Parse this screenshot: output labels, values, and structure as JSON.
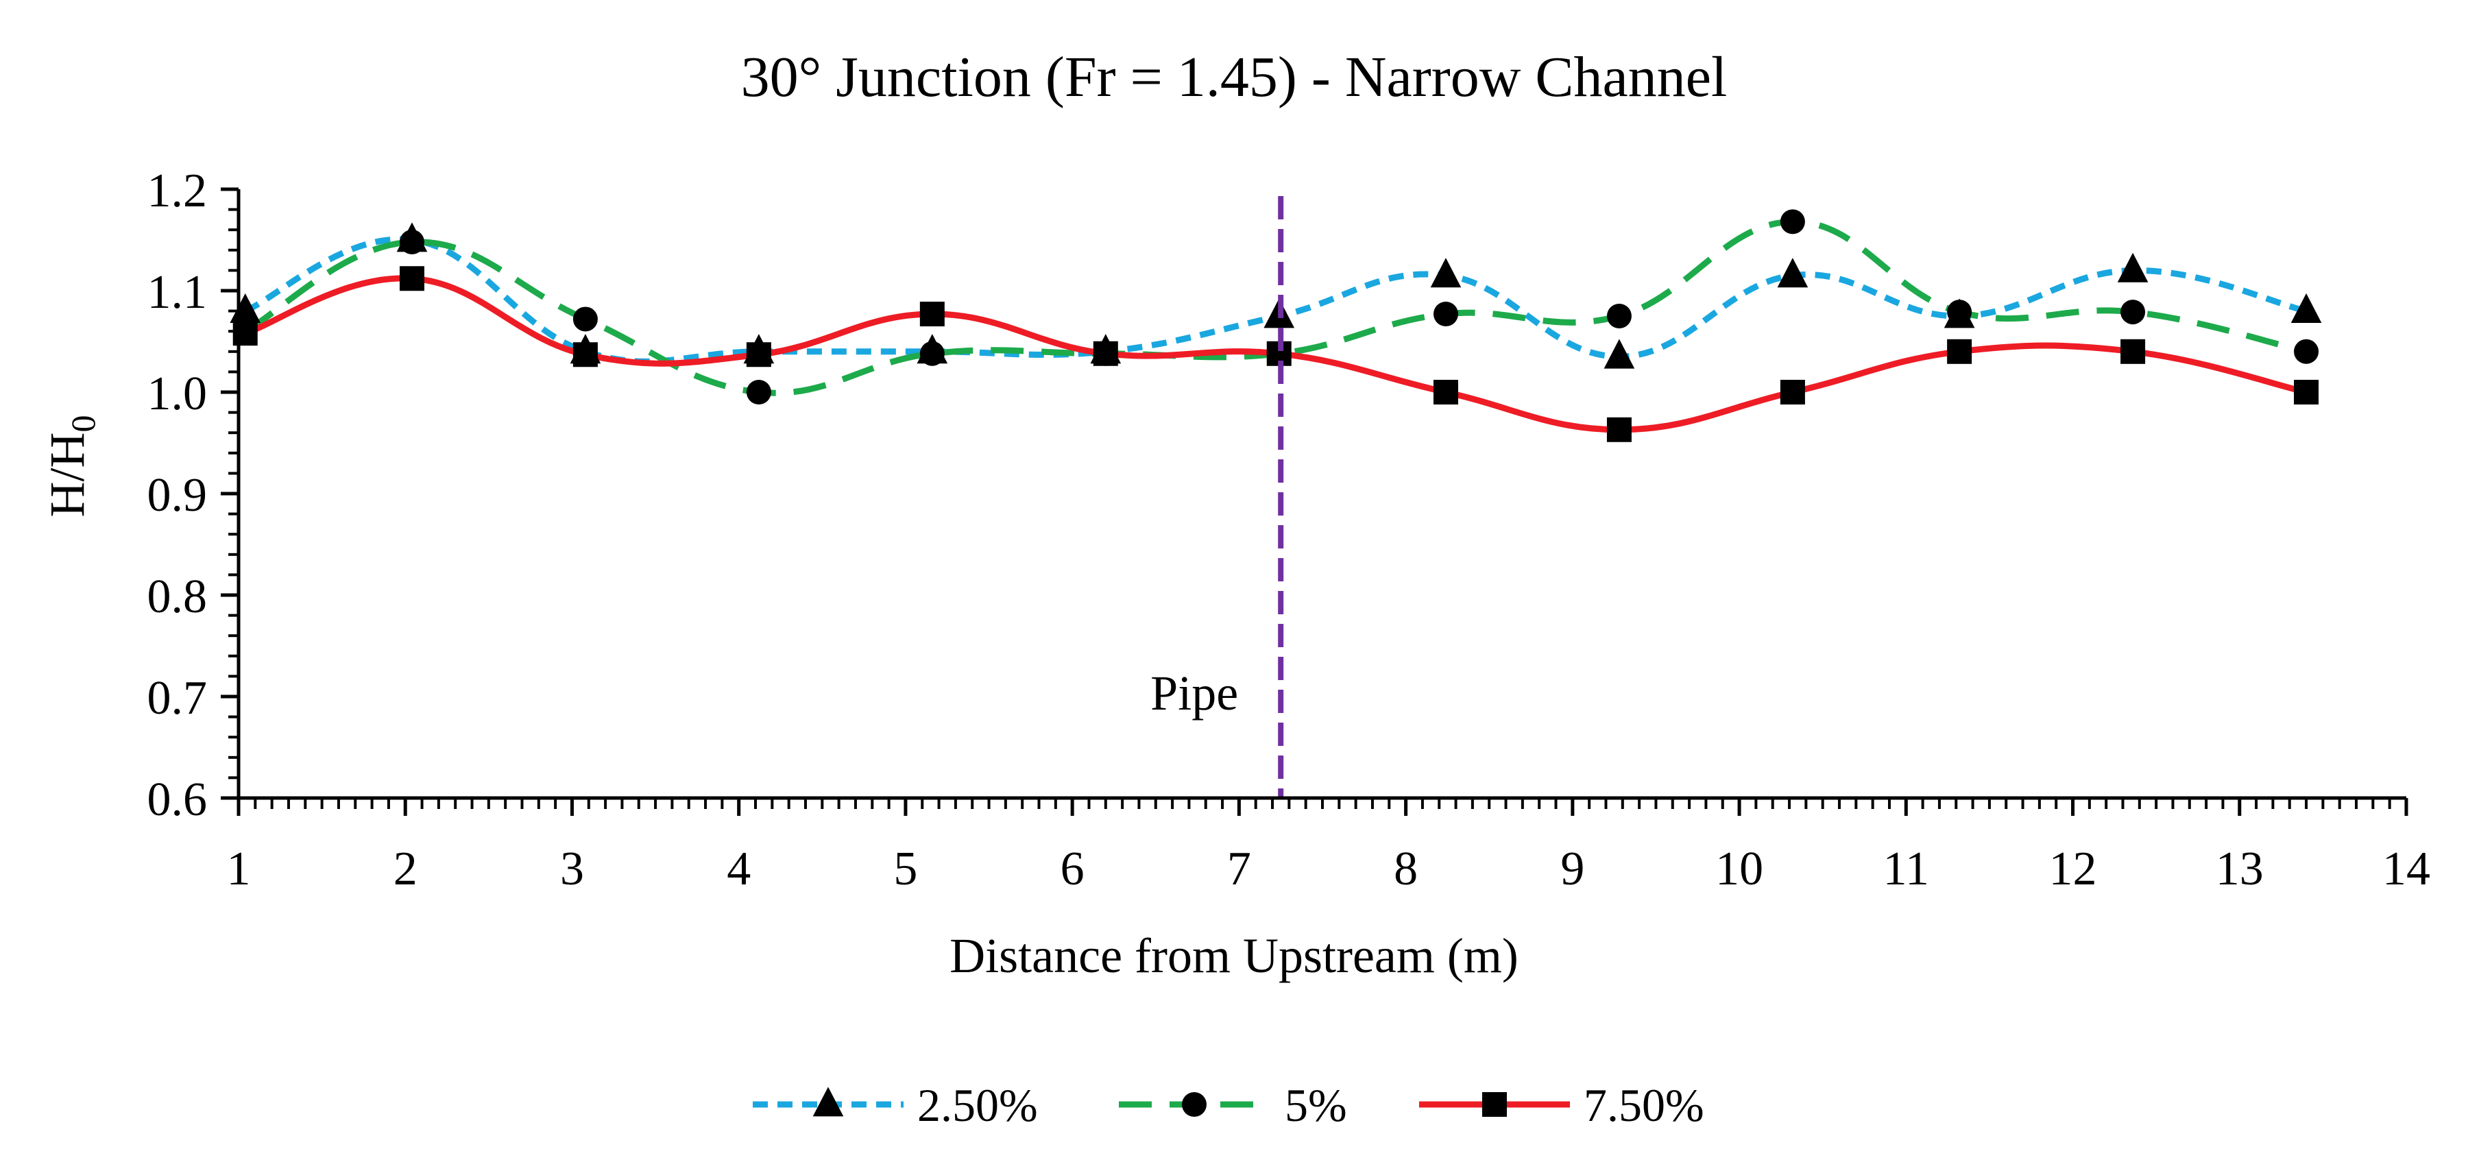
{
  "chart_data": {
    "type": "line",
    "title": "30° Junction (Fr = 1.45) - Narrow Channel",
    "xlabel": "Distance from Upstream (m)",
    "ylabel_main": "H/H",
    "ylabel_sub": "0",
    "xlim": [
      1,
      14
    ],
    "ylim": [
      0.6,
      1.2
    ],
    "x_ticks": [
      1,
      2,
      3,
      4,
      5,
      6,
      7,
      8,
      9,
      10,
      11,
      12,
      13,
      14
    ],
    "y_ticks": [
      "0.6",
      "0.7",
      "0.8",
      "0.9",
      "1.0",
      "1.1",
      "1.2"
    ],
    "grid": false,
    "legend_position": "bottom",
    "annotation": {
      "text": "Pipe",
      "x": 7.25
    },
    "series": [
      {
        "name": "2.50%",
        "color": "#1AA7E0",
        "dash": "dotted",
        "marker": "triangle",
        "x": [
          1.04,
          2.04,
          3.08,
          4.12,
          5.16,
          6.2,
          7.24,
          8.24,
          9.28,
          10.32,
          11.32,
          12.36,
          13.4
        ],
        "y": [
          1.08,
          1.15,
          1.04,
          1.04,
          1.04,
          1.04,
          1.075,
          1.115,
          1.035,
          1.115,
          1.075,
          1.12,
          1.08
        ]
      },
      {
        "name": "5%",
        "color": "#1DAA4B",
        "dash": "dashed",
        "marker": "circle",
        "x": [
          1.04,
          2.04,
          3.08,
          4.12,
          5.16,
          6.2,
          7.24,
          8.24,
          9.28,
          10.32,
          11.32,
          12.36,
          13.4
        ],
        "y": [
          1.06,
          1.148,
          1.072,
          1.0,
          1.038,
          1.038,
          1.038,
          1.077,
          1.075,
          1.168,
          1.079,
          1.079,
          1.04
        ]
      },
      {
        "name": "7.50%",
        "color": "#EE1C25",
        "dash": "solid",
        "marker": "square",
        "x": [
          1.04,
          2.04,
          3.08,
          4.12,
          5.16,
          6.2,
          7.24,
          8.24,
          9.28,
          10.32,
          11.32,
          12.36,
          13.4
        ],
        "y": [
          1.058,
          1.112,
          1.037,
          1.037,
          1.077,
          1.038,
          1.038,
          1.0,
          0.963,
          1.0,
          1.04,
          1.04,
          1.0
        ]
      }
    ],
    "pipe_line_color": "#7030A0"
  }
}
